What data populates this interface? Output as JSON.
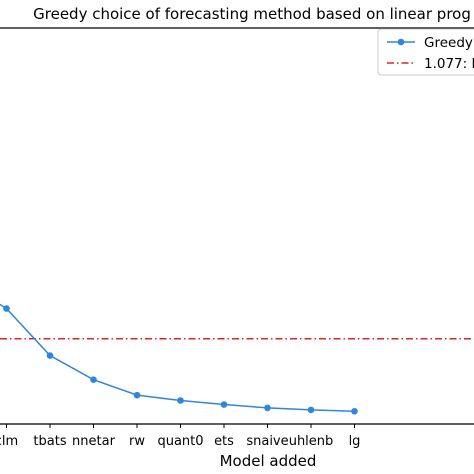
{
  "chart_data": {
    "type": "line",
    "title": "Greedy choice of forecasting method based on linear prog",
    "xlabel": "Model added",
    "ylabel": "",
    "categories": [
      "",
      "clm",
      "tbats",
      "nnetar",
      "rw",
      "quant0",
      "ets",
      "snaive",
      "uhlenb",
      "lg"
    ],
    "series": [
      {
        "name": "Greedy",
        "color": "#2e86de",
        "marker": "circle",
        "values": [
          1.162,
          1.122,
          1.052,
          1.016,
          0.993,
          0.985,
          0.979,
          0.974,
          0.971,
          0.969
        ]
      }
    ],
    "reference_line": {
      "label": "1.077: l",
      "value": 1.077,
      "color": "#e0202a",
      "style": "dash-dot"
    },
    "ylim": [
      0.95,
      1.54
    ],
    "grid": false,
    "legend_position": "top-right"
  }
}
